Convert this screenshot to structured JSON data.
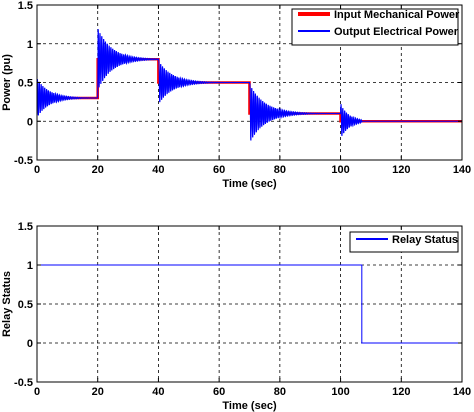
{
  "chart_data": [
    {
      "type": "line",
      "title": "",
      "xlabel": "Time (sec)",
      "ylabel": "Power (pu)",
      "xlim": [
        0,
        140
      ],
      "ylim": [
        -0.5,
        1.5
      ],
      "xticks": [
        0,
        20,
        40,
        60,
        80,
        100,
        120,
        140
      ],
      "yticks": [
        -0.5,
        0,
        0.5,
        1,
        1.5
      ],
      "xtick_labels": [
        "0",
        "20",
        "40",
        "60",
        "80",
        "100",
        "120",
        "140"
      ],
      "ytick_labels": [
        "-0.5",
        "0",
        "0.5",
        "1",
        "1.5"
      ],
      "grid": true,
      "legend_position": "top-right",
      "series": [
        {
          "name": "Input Mechanical Power",
          "color": "#ff0000",
          "x": [
            0,
            20,
            20,
            40,
            40,
            70,
            70,
            100,
            100,
            107,
            107,
            140
          ],
          "y": [
            0.3,
            0.3,
            0.8,
            0.8,
            0.5,
            0.5,
            0.1,
            0.1,
            0,
            0,
            0,
            0
          ]
        },
        {
          "name": "Output Electrical Power",
          "color": "#0000ff",
          "segments": [
            {
              "t0": 0,
              "t1": 20,
              "level": 0.3,
              "start": 0.3,
              "amp": 0.25,
              "decay": 0.25,
              "period": 0.6
            },
            {
              "t0": 20,
              "t1": 40,
              "level": 0.8,
              "start": 0.3,
              "amp": 0.4,
              "decay": 0.22,
              "period": 0.6
            },
            {
              "t0": 40,
              "t1": 70,
              "level": 0.5,
              "start": 0.8,
              "amp": 0.28,
              "decay": 0.22,
              "period": 0.6
            },
            {
              "t0": 70,
              "t1": 100,
              "level": 0.1,
              "start": 0.5,
              "amp": 0.38,
              "decay": 0.2,
              "period": 0.6
            },
            {
              "t0": 100,
              "t1": 107,
              "level": 0,
              "start": 0.1,
              "amp": 0.22,
              "decay": 0.35,
              "period": 0.6
            },
            {
              "t0": 107,
              "t1": 140,
              "level": 0,
              "start": 0,
              "amp": 0,
              "decay": 1,
              "period": 1
            }
          ]
        }
      ]
    },
    {
      "type": "line",
      "title": "",
      "xlabel": "Time (sec)",
      "ylabel": "Relay Status",
      "xlim": [
        0,
        140
      ],
      "ylim": [
        -0.5,
        1.5
      ],
      "xticks": [
        0,
        20,
        40,
        60,
        80,
        100,
        120,
        140
      ],
      "yticks": [
        -0.5,
        0,
        0.5,
        1,
        1.5
      ],
      "xtick_labels": [
        "0",
        "20",
        "40",
        "60",
        "80",
        "100",
        "120",
        "140"
      ],
      "ytick_labels": [
        "-0.5",
        "0",
        "0.5",
        "1",
        "1.5"
      ],
      "grid": true,
      "legend_position": "top-right",
      "series": [
        {
          "name": "Relay Status",
          "color": "#0000ff",
          "x": [
            0,
            107,
            107,
            140
          ],
          "y": [
            1,
            1,
            0,
            0
          ]
        }
      ]
    }
  ]
}
